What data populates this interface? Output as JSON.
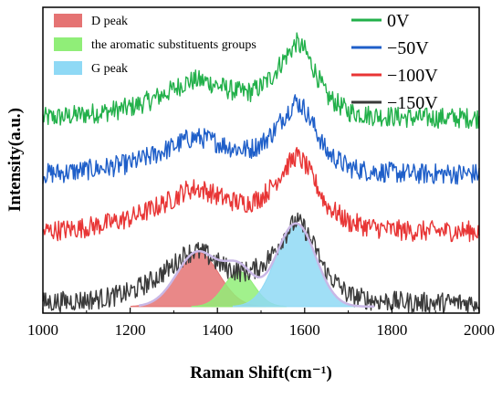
{
  "chart_data": {
    "type": "line",
    "xlabel": "Raman Shift(cm⁻¹)",
    "ylabel": "Intensity(a.u.)",
    "xlim": [
      1000,
      2000
    ],
    "x_ticks": [
      "1000",
      "1200",
      "1400",
      "1600",
      "1800",
      "2000"
    ],
    "y_ticks_labeled": false,
    "grid": false,
    "legend_placement": "top-right",
    "x": [
      1000,
      1050,
      1100,
      1150,
      1200,
      1250,
      1300,
      1325,
      1350,
      1375,
      1400,
      1425,
      1450,
      1475,
      1500,
      1525,
      1550,
      1575,
      1580,
      1600,
      1625,
      1650,
      1700,
      1750,
      1800,
      1850,
      1900,
      1950,
      2000
    ],
    "series": [
      {
        "name": "0V",
        "color": "#22b04a",
        "values": [
          1.45,
          1.46,
          1.48,
          1.5,
          1.53,
          1.59,
          1.67,
          1.72,
          1.74,
          1.73,
          1.7,
          1.67,
          1.65,
          1.65,
          1.69,
          1.77,
          1.89,
          2.0,
          2.03,
          1.97,
          1.8,
          1.62,
          1.5,
          1.47,
          1.46,
          1.45,
          1.45,
          1.45,
          1.45
        ]
      },
      {
        "name": "−50V",
        "color": "#1f5fc9",
        "values": [
          1.02,
          1.03,
          1.05,
          1.07,
          1.1,
          1.16,
          1.23,
          1.28,
          1.3,
          1.29,
          1.26,
          1.23,
          1.21,
          1.21,
          1.25,
          1.33,
          1.45,
          1.56,
          1.58,
          1.52,
          1.36,
          1.19,
          1.07,
          1.04,
          1.03,
          1.02,
          1.02,
          1.02,
          1.02
        ]
      },
      {
        "name": "−100V",
        "color": "#e83535",
        "values": [
          0.58,
          0.59,
          0.61,
          0.64,
          0.68,
          0.75,
          0.83,
          0.89,
          0.91,
          0.89,
          0.85,
          0.82,
          0.8,
          0.8,
          0.84,
          0.92,
          1.04,
          1.14,
          1.16,
          1.1,
          0.95,
          0.78,
          0.65,
          0.61,
          0.59,
          0.58,
          0.58,
          0.58,
          0.58
        ]
      },
      {
        "name": "−150V",
        "color": "#3a3a3a",
        "values": [
          0.03,
          0.04,
          0.05,
          0.07,
          0.11,
          0.2,
          0.32,
          0.4,
          0.43,
          0.4,
          0.34,
          0.29,
          0.27,
          0.27,
          0.31,
          0.4,
          0.53,
          0.64,
          0.66,
          0.6,
          0.44,
          0.26,
          0.09,
          0.05,
          0.04,
          0.03,
          0.03,
          0.03,
          0.03
        ]
      }
    ],
    "fit_components": [
      {
        "name": "D peak",
        "color": "#e57373",
        "center": 1355,
        "width": 48,
        "height": 0.42
      },
      {
        "name": "the aromatic substituents groups",
        "color": "#90ee78",
        "center": 1450,
        "width": 34,
        "height": 0.27
      },
      {
        "name": "G peak",
        "color": "#8fd9f5",
        "center": 1580,
        "width": 45,
        "height": 0.64
      }
    ]
  }
}
